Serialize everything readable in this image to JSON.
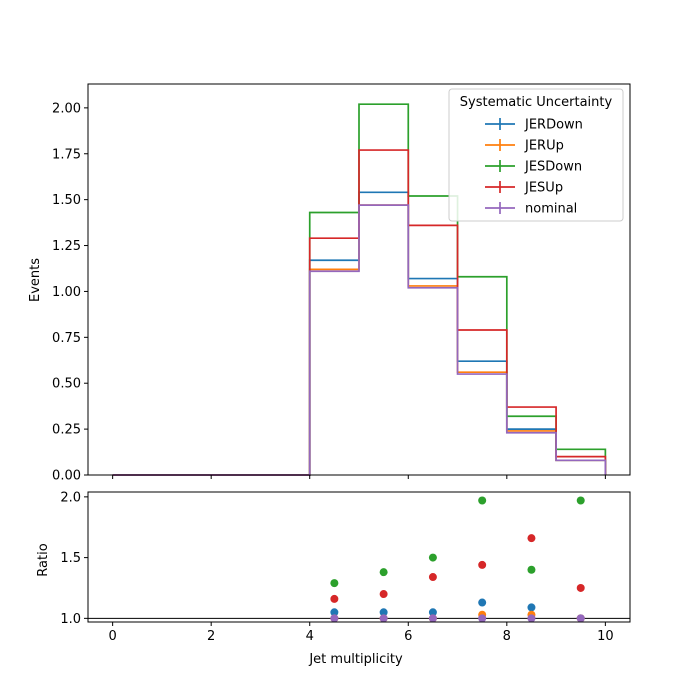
{
  "chart_data": [
    {
      "type": "line",
      "step": "histogram",
      "ylabel": "Events",
      "ylim": [
        0,
        2.13
      ],
      "xlim": [
        -0.5,
        10.5
      ],
      "y_ticks": [
        "0.00",
        "0.25",
        "0.50",
        "0.75",
        "1.00",
        "1.25",
        "1.50",
        "1.75",
        "2.00"
      ],
      "bin_edges": [
        0,
        1,
        2,
        3,
        4,
        5,
        6,
        7,
        8,
        9,
        10
      ],
      "legend": {
        "title": "Systematic Uncertainty",
        "placement": "top-right"
      },
      "series": [
        {
          "name": "JERDown",
          "color": "#1f77b4",
          "values": [
            0,
            0,
            0,
            0,
            1.17,
            1.54,
            1.07,
            0.62,
            0.25,
            0.08
          ]
        },
        {
          "name": "JERUp",
          "color": "#ff7f0e",
          "values": [
            0,
            0,
            0,
            0,
            1.12,
            1.47,
            1.03,
            0.56,
            0.24,
            0.08
          ]
        },
        {
          "name": "JESDown",
          "color": "#2ca02c",
          "values": [
            0,
            0,
            0,
            0,
            1.43,
            2.02,
            1.52,
            1.08,
            0.32,
            0.14
          ]
        },
        {
          "name": "JESUp",
          "color": "#d62728",
          "values": [
            0,
            0,
            0,
            0,
            1.29,
            1.77,
            1.36,
            0.79,
            0.37,
            0.1
          ]
        },
        {
          "name": "nominal",
          "color": "#9467bd",
          "values": [
            0,
            0,
            0,
            0,
            1.11,
            1.47,
            1.02,
            0.55,
            0.23,
            0.08
          ]
        }
      ]
    },
    {
      "type": "scatter",
      "xlabel": "Jet multiplicity",
      "ylabel": "Ratio",
      "xlim": [
        -0.5,
        10.5
      ],
      "ylim": [
        0.97,
        2.04
      ],
      "x_ticks": [
        "0",
        "2",
        "4",
        "6",
        "8",
        "10"
      ],
      "y_ticks": [
        "1.0",
        "1.5",
        "2.0"
      ],
      "reference_line": 1.0,
      "x": [
        4.5,
        5.5,
        6.5,
        7.5,
        8.5,
        9.5
      ],
      "series": [
        {
          "name": "JERDown",
          "color": "#1f77b4",
          "values": [
            1.05,
            1.05,
            1.05,
            1.13,
            1.09,
            1.0
          ]
        },
        {
          "name": "JERUp",
          "color": "#ff7f0e",
          "values": [
            1.0,
            1.0,
            1.0,
            1.03,
            1.03,
            1.0
          ]
        },
        {
          "name": "JESDown",
          "color": "#2ca02c",
          "values": [
            1.29,
            1.38,
            1.5,
            1.97,
            1.4,
            1.97
          ]
        },
        {
          "name": "JESUp",
          "color": "#d62728",
          "values": [
            1.16,
            1.2,
            1.34,
            1.44,
            1.66,
            1.25
          ]
        },
        {
          "name": "nominal",
          "color": "#9467bd",
          "values": [
            1.0,
            1.0,
            1.0,
            1.0,
            1.0,
            1.0
          ]
        }
      ]
    }
  ]
}
